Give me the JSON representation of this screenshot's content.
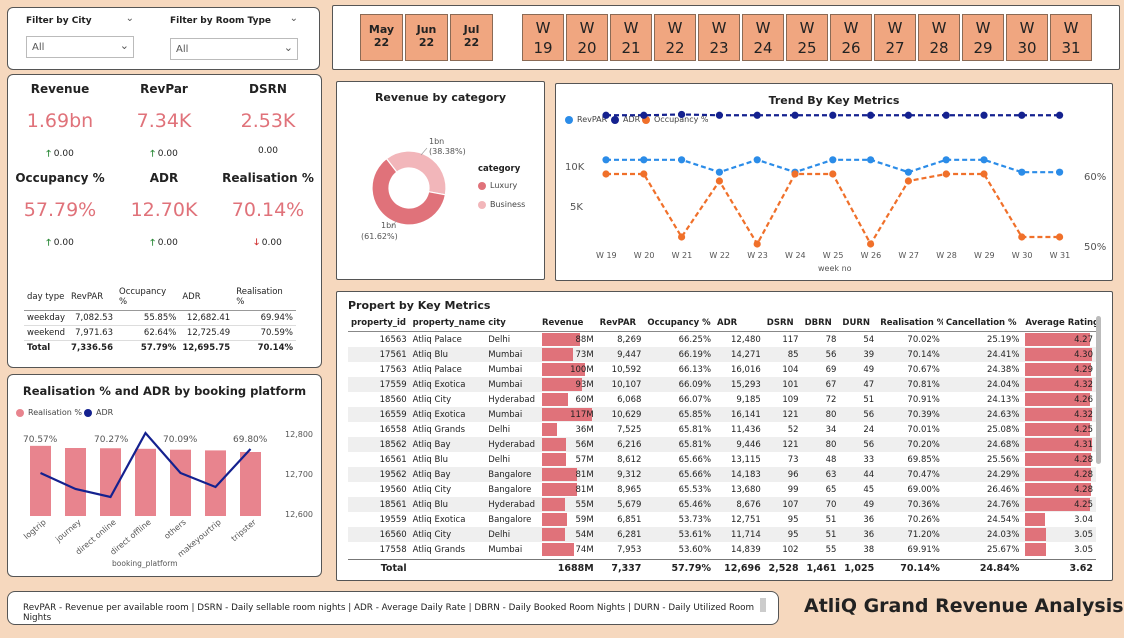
{
  "filters": [
    {
      "label": "Filter by City",
      "value": "All"
    },
    {
      "label": "Filter by Room Type",
      "value": "All"
    }
  ],
  "months": [
    {
      "top": "May",
      "bottom": "22"
    },
    {
      "top": "Jun",
      "bottom": "22"
    },
    {
      "top": "Jul",
      "bottom": "22"
    }
  ],
  "weeks": [
    {
      "top": "W",
      "bottom": "19"
    },
    {
      "top": "W",
      "bottom": "20"
    },
    {
      "top": "W",
      "bottom": "21"
    },
    {
      "top": "W",
      "bottom": "22"
    },
    {
      "top": "W",
      "bottom": "23"
    },
    {
      "top": "W",
      "bottom": "24"
    },
    {
      "top": "W",
      "bottom": "25"
    },
    {
      "top": "W",
      "bottom": "26"
    },
    {
      "top": "W",
      "bottom": "27"
    },
    {
      "top": "W",
      "bottom": "28"
    },
    {
      "top": "W",
      "bottom": "29"
    },
    {
      "top": "W",
      "bottom": "30"
    },
    {
      "top": "W",
      "bottom": "31"
    }
  ],
  "kpis": [
    {
      "label": "Revenue",
      "value": "1.69bn",
      "delta": "0.00",
      "dir": "up"
    },
    {
      "label": "RevPar",
      "value": "7.34K",
      "delta": "0.00",
      "dir": "up"
    },
    {
      "label": "DSRN",
      "value": "2.53K",
      "delta": "0.00",
      "dir": "none"
    },
    {
      "label": "Occupancy %",
      "value": "57.79%",
      "delta": "0.00",
      "dir": "up"
    },
    {
      "label": "ADR",
      "value": "12.70K",
      "delta": "0.00",
      "dir": "up"
    },
    {
      "label": "Realisation %",
      "value": "70.14%",
      "delta": "0.00",
      "dir": "down"
    }
  ],
  "arrows": {
    "up": "🡑",
    "down": "🡓"
  },
  "daytype_table": {
    "headers": [
      "day type",
      "RevPAR",
      "Occupancy %",
      "ADR",
      "Realisation %"
    ],
    "rows": [
      [
        "weekday",
        "7,082.53",
        "55.85%",
        "12,682.41",
        "69.94%"
      ],
      [
        "weekend",
        "7,971.63",
        "62.64%",
        "12,725.49",
        "70.59%"
      ]
    ],
    "total": [
      "Total",
      "7,336.56",
      "57.79%",
      "12,695.75",
      "70.14%"
    ]
  },
  "revenue_by_category": {
    "title": "Revenue by category",
    "legend_title": "category",
    "slices": [
      {
        "name": "Luxury",
        "value": 61.62,
        "label1": "1bn",
        "label2": "(61.62%)",
        "color": "#E0727A"
      },
      {
        "name": "Business",
        "value": 38.38,
        "label1": "1bn",
        "label2": "(38.38%)",
        "color": "#F2B6BA"
      }
    ]
  },
  "trend": {
    "title": "Trend By Key Metrics",
    "xlabel": "week no",
    "legend": [
      {
        "name": "RevPAR",
        "color": "#2B8CE8"
      },
      {
        "name": "ADR",
        "color": "#14218F"
      },
      {
        "name": "Occupancy %",
        "color": "#F0702A"
      }
    ],
    "left_ticks": [
      "10K",
      "5K"
    ],
    "right_ticks": [
      "60%",
      "50%"
    ]
  },
  "platform": {
    "title": "Realisation % and ADR by booking platform",
    "legend": [
      {
        "name": "Realisation %",
        "color": "#E8848E"
      },
      {
        "name": "ADR",
        "color": "#14218F"
      }
    ],
    "xlabel": "booking_platform",
    "right_ticks": [
      "12,800",
      "12,700",
      "12,600"
    ],
    "top_labels": [
      "70.57%",
      "70.27%",
      "70.09%",
      "69.80%"
    ]
  },
  "chart_data": [
    {
      "type": "line",
      "title": "Trend By Key Metrics",
      "xlabel": "week no",
      "x": [
        "W 19",
        "W 20",
        "W 21",
        "W 22",
        "W 23",
        "W 24",
        "W 25",
        "W 26",
        "W 27",
        "W 28",
        "W 29",
        "W 30",
        "W 31"
      ],
      "series": [
        {
          "name": "RevPAR",
          "axis": "left",
          "values": [
            7300,
            7300,
            7300,
            5800,
            7300,
            5800,
            7300,
            7300,
            5800,
            7300,
            7300,
            5800,
            5800
          ]
        },
        {
          "name": "ADR",
          "axis": "left",
          "values": [
            12700,
            12700,
            12800,
            12700,
            12700,
            12700,
            12700,
            12700,
            12700,
            12700,
            12700,
            12700,
            12700
          ]
        },
        {
          "name": "Occupancy %",
          "axis": "right",
          "values": [
            60,
            60,
            51,
            59,
            50,
            60,
            60,
            50,
            59,
            60,
            60,
            51,
            51
          ]
        }
      ],
      "ylim_left": [
        0,
        14000
      ],
      "ylim_right": [
        48,
        65
      ],
      "yticks_left": [
        "10K",
        "5K"
      ],
      "yticks_right": [
        "60%",
        "50%"
      ]
    },
    {
      "type": "bar",
      "title": "Realisation % and ADR by booking platform",
      "xlabel": "booking_platform",
      "categories": [
        "logtrip",
        "journey",
        "direct online",
        "direct offline",
        "others",
        "makeyourtrip",
        "tripster"
      ],
      "series": [
        {
          "name": "Realisation %",
          "type": "bar",
          "values": [
            70.57,
            70.3,
            70.27,
            70.2,
            70.09,
            70.0,
            69.8
          ]
        },
        {
          "name": "ADR",
          "type": "line",
          "axis": "right",
          "values": [
            12700,
            12660,
            12640,
            12800,
            12700,
            12665,
            12760
          ]
        }
      ],
      "yticks_right": [
        "12,800",
        "12,700",
        "12,600"
      ],
      "ylim_right": [
        12600,
        12800
      ]
    }
  ],
  "property_table": {
    "title": "Propert by Key Metrics",
    "headers": [
      "property_id",
      "property_name",
      "city",
      "Revenue",
      "RevPAR",
      "Occupancy %",
      "ADR",
      "DSRN",
      "DBRN",
      "DURN",
      "Realisation %",
      "Cancellation %",
      "Average Rating"
    ],
    "rows": [
      [
        "16563",
        "Atliq Palace",
        "Delhi",
        "88M",
        88,
        "8,269",
        "66.25%",
        "12,480",
        "117",
        "78",
        "54",
        "70.02%",
        "25.19%",
        "4.27",
        4.27
      ],
      [
        "17561",
        "Atliq Blu",
        "Mumbai",
        "73M",
        73,
        "9,447",
        "66.19%",
        "14,271",
        "85",
        "56",
        "39",
        "70.14%",
        "24.41%",
        "4.30",
        4.3
      ],
      [
        "17563",
        "Atliq Palace",
        "Mumbai",
        "100M",
        100,
        "10,592",
        "66.13%",
        "16,016",
        "104",
        "69",
        "49",
        "70.67%",
        "24.38%",
        "4.29",
        4.29
      ],
      [
        "17559",
        "Atliq Exotica",
        "Mumbai",
        "93M",
        93,
        "10,107",
        "66.09%",
        "15,293",
        "101",
        "67",
        "47",
        "70.81%",
        "24.04%",
        "4.32",
        4.32
      ],
      [
        "18560",
        "Atliq City",
        "Hyderabad",
        "60M",
        60,
        "6,068",
        "66.07%",
        "9,185",
        "109",
        "72",
        "51",
        "70.91%",
        "24.13%",
        "4.26",
        4.26
      ],
      [
        "16559",
        "Atliq Exotica",
        "Mumbai",
        "117M",
        117,
        "10,629",
        "65.85%",
        "16,141",
        "121",
        "80",
        "56",
        "70.39%",
        "24.63%",
        "4.32",
        4.32
      ],
      [
        "16558",
        "Atliq Grands",
        "Delhi",
        "36M",
        36,
        "7,525",
        "65.81%",
        "11,436",
        "52",
        "34",
        "24",
        "70.01%",
        "25.08%",
        "4.25",
        4.25
      ],
      [
        "18562",
        "Atliq Bay",
        "Hyderabad",
        "56M",
        56,
        "6,216",
        "65.81%",
        "9,446",
        "121",
        "80",
        "56",
        "70.20%",
        "24.68%",
        "4.31",
        4.31
      ],
      [
        "16561",
        "Atliq Blu",
        "Delhi",
        "57M",
        57,
        "8,612",
        "65.66%",
        "13,115",
        "73",
        "48",
        "33",
        "69.85%",
        "25.56%",
        "4.28",
        4.28
      ],
      [
        "19562",
        "Atliq Bay",
        "Bangalore",
        "81M",
        81,
        "9,312",
        "65.66%",
        "14,183",
        "96",
        "63",
        "44",
        "70.47%",
        "24.29%",
        "4.28",
        4.28
      ],
      [
        "19560",
        "Atliq City",
        "Bangalore",
        "81M",
        81,
        "8,965",
        "65.53%",
        "13,680",
        "99",
        "65",
        "45",
        "69.00%",
        "26.46%",
        "4.28",
        4.28
      ],
      [
        "18561",
        "Atliq Blu",
        "Hyderabad",
        "55M",
        55,
        "5,679",
        "65.46%",
        "8,676",
        "107",
        "70",
        "49",
        "70.36%",
        "24.76%",
        "4.25",
        4.25
      ],
      [
        "19559",
        "Atliq Exotica",
        "Bangalore",
        "59M",
        59,
        "6,851",
        "53.73%",
        "12,751",
        "95",
        "51",
        "36",
        "70.26%",
        "24.54%",
        "3.04",
        3.04
      ],
      [
        "16560",
        "Atliq City",
        "Delhi",
        "54M",
        54,
        "6,281",
        "53.61%",
        "11,714",
        "95",
        "51",
        "36",
        "71.20%",
        "24.03%",
        "3.05",
        3.05
      ],
      [
        "17558",
        "Atliq Grands",
        "Mumbai",
        "74M",
        74,
        "7,953",
        "53.60%",
        "14,839",
        "102",
        "55",
        "38",
        "69.91%",
        "25.67%",
        "3.05",
        3.05
      ]
    ],
    "total": [
      "Total",
      "",
      "",
      "1688M",
      "7,337",
      "57.79%",
      "12,696",
      "2,528",
      "1,461",
      "1,025",
      "70.14%",
      "24.84%",
      "3.62"
    ]
  },
  "footer_text": "RevPAR - Revenue per available room | DSRN - Daily sellable room nights | ADR - Average Daily Rate | DBRN - Daily Booked Room Nights | DURN - Daily Utilized Room Nights",
  "brand": "AtliQ Grand Revenue Analysis"
}
